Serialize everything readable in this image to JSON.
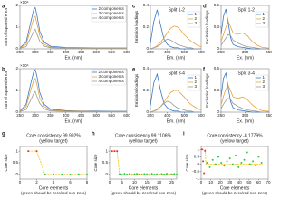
{
  "chart_data": [
    {
      "type": "line",
      "panel": "a",
      "ylabel": "Sum of squared error",
      "y_multiplier": "×10⁴",
      "xlabel": "Ex. (nm)",
      "x": [
        250,
        270,
        285,
        295,
        300,
        305,
        315,
        330,
        350,
        400,
        450,
        500,
        550,
        600
      ],
      "xlim": [
        250,
        600
      ],
      "xticks": [
        250,
        300,
        350,
        400,
        450,
        500,
        550,
        600
      ],
      "ylim": [
        0,
        2
      ],
      "yticks": [
        0,
        1,
        2
      ],
      "legend": "upper right",
      "series": [
        {
          "name": "2 components",
          "color": "#3a78c4",
          "values": [
            0.05,
            0.3,
            1.2,
            1.8,
            1.9,
            1.6,
            0.8,
            0.3,
            0.12,
            0.06,
            0.05,
            0.04,
            0.04,
            0.04
          ]
        },
        {
          "name": "3 components",
          "color": "#e8a33d",
          "values": [
            0.04,
            0.2,
            0.9,
            1.4,
            1.5,
            1.2,
            0.6,
            0.2,
            0.08,
            0.04,
            0.03,
            0.03,
            0.03,
            0.03
          ]
        },
        {
          "name": "4 components",
          "color": "#9a9a9a",
          "values": [
            0.03,
            0.1,
            0.5,
            0.8,
            0.9,
            0.7,
            0.35,
            0.12,
            0.05,
            0.03,
            0.02,
            0.02,
            0.02,
            0.02
          ]
        }
      ]
    },
    {
      "type": "line",
      "panel": "c",
      "annotation": "Split 1-2",
      "ylabel": "Emission loadings",
      "xlabel": "Em. (nm)",
      "x": [
        300,
        320,
        340,
        360,
        380,
        400,
        420,
        440,
        460,
        480,
        500,
        520,
        540,
        560,
        580,
        600
      ],
      "xlim": [
        300,
        600
      ],
      "xticks": [
        300,
        400,
        500,
        600
      ],
      "ylim": [
        0,
        0.4
      ],
      "yticks": [
        0,
        0.2,
        0.4
      ],
      "legend": "upper right",
      "series": [
        {
          "name": "1",
          "color": "#3a78c4",
          "values": [
            0.05,
            0.25,
            0.36,
            0.22,
            0.09,
            0.04,
            0.02,
            0.01,
            0.01,
            0,
            0,
            0,
            0,
            0,
            0,
            0
          ]
        },
        {
          "name": "2",
          "color": "#e8a33d",
          "values": [
            0,
            0.01,
            0.03,
            0.06,
            0.1,
            0.15,
            0.19,
            0.21,
            0.2,
            0.17,
            0.13,
            0.1,
            0.07,
            0.05,
            0.03,
            0.02
          ]
        },
        {
          "name": "3",
          "color": "#9a9a9a",
          "values": [
            0,
            0.01,
            0.02,
            0.04,
            0.07,
            0.09,
            0.08,
            0.06,
            0.04,
            0.03,
            0.02,
            0.01,
            0.01,
            0,
            0,
            0
          ]
        }
      ]
    },
    {
      "type": "line",
      "panel": "d",
      "annotation": "Split 1-2",
      "ylabel": "Excitation loadings",
      "xlabel": "Ex. (nm)",
      "x": [
        250,
        260,
        270,
        280,
        290,
        300,
        320,
        340,
        360,
        380,
        400,
        420,
        450
      ],
      "xlim": [
        250,
        450
      ],
      "xticks": [
        250,
        350,
        450
      ],
      "ylim": [
        0,
        0.6
      ],
      "yticks": [
        0,
        0.3,
        0.6
      ],
      "legend": "upper right",
      "series": [
        {
          "name": "1",
          "color": "#3a78c4",
          "values": [
            0.2,
            0.45,
            0.55,
            0.35,
            0.15,
            0.06,
            0.03,
            0.02,
            0.01,
            0,
            0,
            0,
            0
          ]
        },
        {
          "name": "2",
          "color": "#e8a33d",
          "values": [
            0.1,
            0.2,
            0.3,
            0.38,
            0.3,
            0.22,
            0.2,
            0.22,
            0.18,
            0.1,
            0.05,
            0.02,
            0.01
          ]
        },
        {
          "name": "3",
          "color": "#9a9a9a",
          "values": [
            0.05,
            0.1,
            0.15,
            0.2,
            0.18,
            0.12,
            0.08,
            0.05,
            0.03,
            0.02,
            0.01,
            0,
            0
          ]
        }
      ]
    },
    {
      "type": "line",
      "panel": "b",
      "ylabel": "Sum of squared error",
      "y_multiplier": "×10⁴",
      "xlabel": "Ex. (nm)",
      "x": [
        250,
        270,
        285,
        295,
        300,
        305,
        315,
        330,
        350,
        400,
        450,
        500,
        550,
        600
      ],
      "xlim": [
        250,
        600
      ],
      "xticks": [
        250,
        300,
        350,
        400,
        450,
        500,
        550,
        600
      ],
      "ylim": [
        0,
        2
      ],
      "yticks": [
        0,
        1,
        2
      ],
      "legend": "upper right",
      "series": [
        {
          "name": "2 components",
          "color": "#3a78c4",
          "values": [
            0.05,
            0.35,
            1.3,
            1.85,
            1.95,
            1.7,
            0.9,
            0.35,
            0.14,
            0.07,
            0.05,
            0.05,
            0.04,
            0.04
          ]
        },
        {
          "name": "3 components",
          "color": "#e8a33d",
          "values": [
            0.04,
            0.25,
            1.0,
            1.45,
            1.55,
            1.3,
            0.65,
            0.25,
            0.1,
            0.05,
            0.04,
            0.03,
            0.03,
            0.03
          ]
        },
        {
          "name": "4 components",
          "color": "#9a9a9a",
          "values": [
            0.03,
            0.12,
            0.55,
            0.85,
            0.95,
            0.75,
            0.4,
            0.14,
            0.06,
            0.03,
            0.02,
            0.02,
            0.02,
            0.02
          ]
        }
      ]
    },
    {
      "type": "line",
      "panel": "e",
      "annotation": "Split 3-4",
      "ylabel": "Emission loadings",
      "xlabel": "Em. (nm)",
      "x": [
        300,
        320,
        340,
        360,
        380,
        400,
        420,
        440,
        460,
        480,
        500,
        520,
        540,
        560,
        580,
        600
      ],
      "xlim": [
        300,
        600
      ],
      "xticks": [
        300,
        400,
        500,
        600
      ],
      "ylim": [
        0,
        0.4
      ],
      "yticks": [
        0,
        0.2,
        0.4
      ],
      "legend": "upper right",
      "series": [
        {
          "name": "1",
          "color": "#3a78c4",
          "values": [
            0.06,
            0.27,
            0.35,
            0.2,
            0.08,
            0.04,
            0.02,
            0.01,
            0.01,
            0,
            0,
            0,
            0,
            0,
            0,
            0
          ]
        },
        {
          "name": "2",
          "color": "#e8a33d",
          "values": [
            0,
            0.01,
            0.03,
            0.05,
            0.09,
            0.14,
            0.18,
            0.2,
            0.2,
            0.17,
            0.14,
            0.1,
            0.07,
            0.05,
            0.03,
            0.02
          ]
        },
        {
          "name": "3",
          "color": "#9a9a9a",
          "values": [
            0,
            0.01,
            0.02,
            0.05,
            0.08,
            0.1,
            0.09,
            0.06,
            0.04,
            0.03,
            0.02,
            0.01,
            0.01,
            0,
            0,
            0
          ]
        }
      ]
    },
    {
      "type": "line",
      "panel": "f",
      "annotation": "Split 3-4",
      "ylabel": "Excitation loadings",
      "xlabel": "Ex. (nm)",
      "x": [
        250,
        260,
        270,
        280,
        290,
        300,
        320,
        340,
        360,
        380,
        400,
        420,
        450
      ],
      "xlim": [
        250,
        450
      ],
      "xticks": [
        250,
        350,
        450
      ],
      "ylim": [
        0,
        0.6
      ],
      "yticks": [
        0,
        0.3,
        0.6
      ],
      "legend": "upper right",
      "series": [
        {
          "name": "1",
          "color": "#3a78c4",
          "values": [
            0.22,
            0.47,
            0.54,
            0.33,
            0.14,
            0.06,
            0.03,
            0.02,
            0.01,
            0,
            0,
            0,
            0
          ]
        },
        {
          "name": "2",
          "color": "#e8a33d",
          "values": [
            0.1,
            0.22,
            0.32,
            0.37,
            0.29,
            0.21,
            0.19,
            0.21,
            0.17,
            0.1,
            0.05,
            0.02,
            0.01
          ]
        },
        {
          "name": "3",
          "color": "#9a9a9a",
          "values": [
            0.05,
            0.11,
            0.16,
            0.19,
            0.17,
            0.12,
            0.08,
            0.05,
            0.03,
            0.02,
            0.01,
            0,
            0
          ]
        }
      ]
    },
    {
      "type": "scatter",
      "panel": "g",
      "title": "Core consistency 99.992%",
      "subtitle": "(yellow target)",
      "ylabel": "Core size",
      "xlabel": "Core elements",
      "xnote": "(green should be zero/red non-zero)",
      "xlim": [
        0,
        8
      ],
      "xticks": [
        0,
        2,
        4,
        6,
        8
      ],
      "ylim": [
        -0.2,
        1.2
      ],
      "yticks": [
        0,
        0.5,
        1
      ],
      "series": [
        {
          "style": "dashed",
          "color": "#f2c200",
          "x": [
            1,
            2,
            3,
            4,
            5,
            6,
            7,
            8
          ],
          "values": [
            1,
            1,
            0,
            0,
            0,
            0,
            0,
            0
          ]
        },
        {
          "color": "#e03030",
          "x": [
            1,
            2
          ],
          "values": [
            1,
            1
          ]
        },
        {
          "color": "#2ecc40",
          "x": [
            3,
            4,
            5,
            6,
            7,
            8
          ],
          "values": [
            0,
            0.01,
            0,
            0,
            0.01,
            0
          ]
        }
      ]
    },
    {
      "type": "scatter",
      "panel": "h",
      "title": "Core consistency 99.1106%",
      "subtitle": "(yellow target)",
      "ylabel": "Core size",
      "xlabel": "Core elements",
      "xnote": "(green should be zero/red non-zero)",
      "xlim": [
        0,
        27
      ],
      "xticks": [
        0,
        5,
        10,
        15,
        20,
        25
      ],
      "ylim": [
        -0.2,
        1.2
      ],
      "yticks": [
        0,
        0.5,
        1
      ],
      "series": [
        {
          "style": "dashed",
          "color": "#f2c200",
          "x": [
            1,
            3,
            4,
            27
          ],
          "values": [
            1,
            1,
            0,
            0
          ]
        },
        {
          "color": "#e03030",
          "x": [
            1,
            2,
            3
          ],
          "values": [
            1,
            1,
            1
          ]
        },
        {
          "color": "#2ecc40",
          "x": [
            4,
            5,
            6,
            7,
            8,
            9,
            10,
            11,
            12,
            13,
            14,
            15,
            16,
            17,
            18,
            19,
            20,
            21,
            22,
            23,
            24,
            25,
            26,
            27
          ],
          "values": [
            0.02,
            -0.01,
            0.03,
            0,
            0.02,
            -0.02,
            0.01,
            0.03,
            0,
            -0.01,
            0.02,
            0.01,
            -0.02,
            0.03,
            0,
            0.01,
            -0.01,
            0.02,
            0,
            0.03,
            -0.01,
            0.01,
            0.02,
            0
          ]
        }
      ]
    },
    {
      "type": "scatter",
      "panel": "i",
      "title": "Core consistency -8.1779%",
      "subtitle": "(yellow target)",
      "ylabel": "Core size",
      "xlabel": "Core elements",
      "xnote": "(green should be zero/red non-zero)",
      "xlim": [
        0,
        70
      ],
      "xticks": [
        0,
        10,
        20,
        30,
        40,
        50,
        60,
        70
      ],
      "ylim": [
        -1,
        1.2
      ],
      "yticks": [
        -1,
        -0.5,
        0,
        0.5,
        1
      ],
      "series": [
        {
          "style": "dashed",
          "color": "#f2c200",
          "x": [
            1,
            4,
            5,
            64
          ],
          "values": [
            1,
            1,
            0,
            0
          ]
        },
        {
          "color": "#e03030",
          "x": [
            1,
            2,
            3,
            4
          ],
          "values": [
            1,
            0.2,
            -0.6,
            0.9
          ]
        },
        {
          "color": "#2ecc40",
          "x": [
            6,
            9,
            12,
            15,
            18,
            21,
            24,
            27,
            30,
            33,
            36,
            39,
            42,
            45,
            48,
            51,
            54,
            57,
            60,
            63
          ],
          "values": [
            0.1,
            -0.2,
            0.3,
            0,
            0.5,
            0.1,
            -0.1,
            0.2,
            0.4,
            0,
            0.6,
            -0.2,
            0.1,
            0.3,
            0.8,
            0,
            0.2,
            -0.1,
            0.5,
            0.1
          ]
        }
      ]
    }
  ]
}
